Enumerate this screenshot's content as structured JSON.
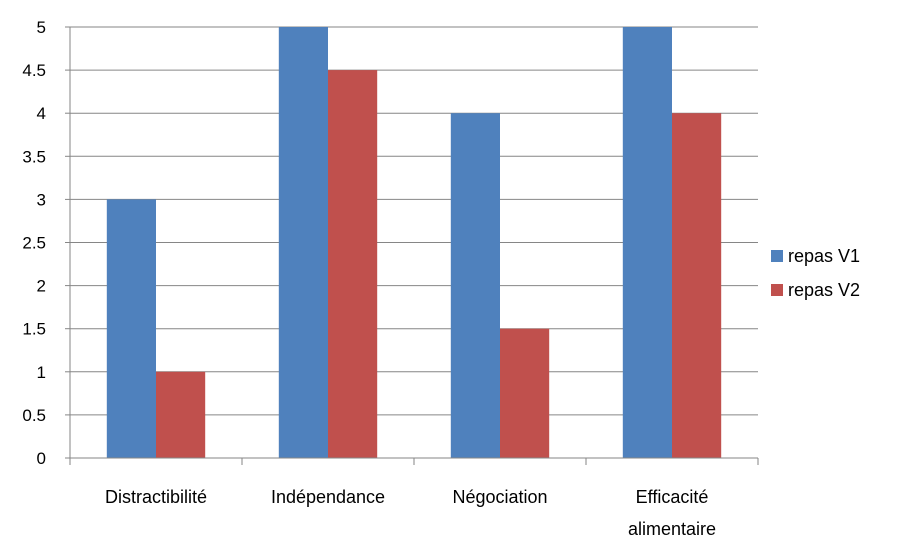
{
  "chart_data": {
    "type": "bar",
    "title": "",
    "xlabel": "",
    "ylabel": "",
    "categories": [
      "Distractibilité",
      "Indépendance",
      "Négociation",
      "Efficacité alimentaire"
    ],
    "category_lines": [
      [
        "Distractibilité"
      ],
      [
        "Indépendance"
      ],
      [
        "Négociation"
      ],
      [
        "Efficacité",
        "alimentaire"
      ]
    ],
    "series": [
      {
        "name": "repas V1",
        "color": "#4F81BD",
        "values": [
          3,
          5,
          4,
          5
        ]
      },
      {
        "name": "repas V2",
        "color": "#C0504D",
        "values": [
          1,
          4.5,
          1.5,
          4
        ]
      }
    ],
    "ylim": [
      0,
      5
    ],
    "yticks": [
      0,
      0.5,
      1,
      1.5,
      2,
      2.5,
      3,
      3.5,
      4,
      4.5,
      5
    ],
    "ytick_labels": [
      "0",
      "0.5",
      "1",
      "1.5",
      "2",
      "2.5",
      "3",
      "3.5",
      "4",
      "4.5",
      "5"
    ],
    "grid": true,
    "legend_position": "right"
  }
}
